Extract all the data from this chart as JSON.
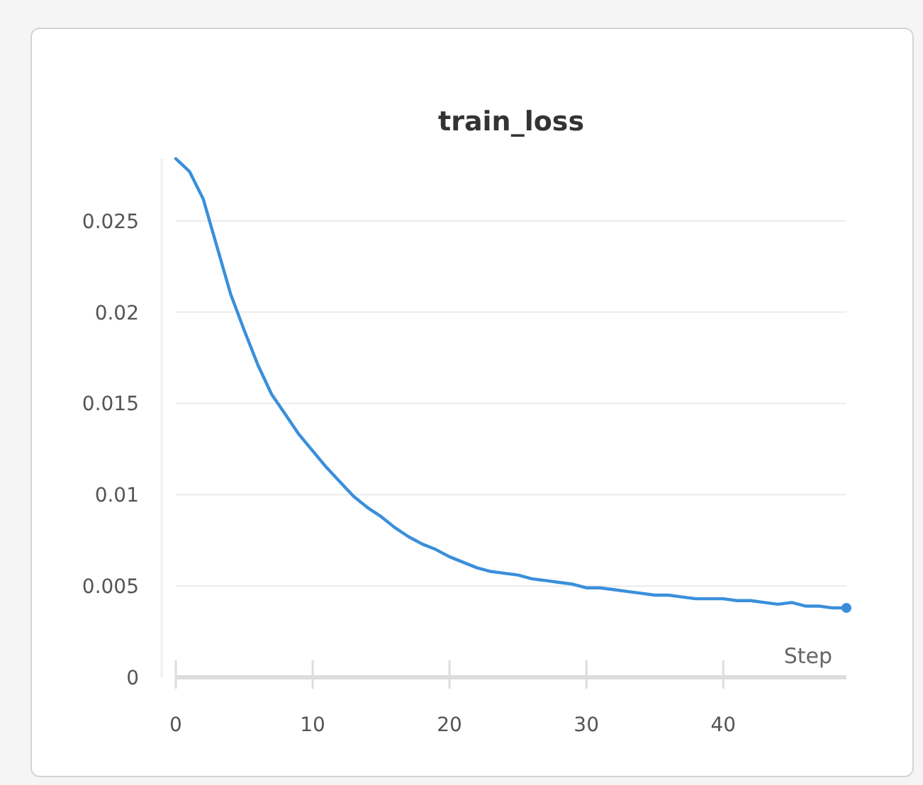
{
  "chart_data": {
    "type": "line",
    "title": "train_loss",
    "xlabel": "Step",
    "x": [
      0,
      1,
      2,
      3,
      4,
      5,
      6,
      7,
      8,
      9,
      10,
      11,
      12,
      13,
      14,
      15,
      16,
      17,
      18,
      19,
      20,
      21,
      22,
      23,
      24,
      25,
      26,
      27,
      28,
      29,
      30,
      31,
      32,
      33,
      34,
      35,
      36,
      37,
      38,
      39,
      40,
      41,
      42,
      43,
      44,
      45,
      46,
      47,
      48,
      49
    ],
    "series": [
      {
        "color": "#3a8fdb",
        "values": [
          0.0284,
          0.0277,
          0.0262,
          0.0236,
          0.021,
          0.019,
          0.0171,
          0.0155,
          0.0144,
          0.0133,
          0.0124,
          0.0115,
          0.0107,
          0.0099,
          0.0093,
          0.0088,
          0.0082,
          0.0077,
          0.0073,
          0.007,
          0.0066,
          0.0063,
          0.006,
          0.0058,
          0.0057,
          0.0056,
          0.0054,
          0.0053,
          0.0052,
          0.0051,
          0.0049,
          0.0049,
          0.0048,
          0.0047,
          0.0046,
          0.0045,
          0.0045,
          0.0044,
          0.0043,
          0.0043,
          0.0043,
          0.0042,
          0.0042,
          0.0041,
          0.004,
          0.0041,
          0.0039,
          0.0039,
          0.0038,
          0.0038
        ]
      }
    ],
    "xlim": [
      0,
      49
    ],
    "xticks": [
      0,
      10,
      20,
      30,
      40
    ],
    "ylim": [
      0,
      0.0284
    ],
    "yticks": [
      0,
      0.005,
      0.01,
      0.015,
      0.02,
      0.025
    ],
    "grid": "y",
    "marker": "none",
    "line_style": "solid"
  }
}
